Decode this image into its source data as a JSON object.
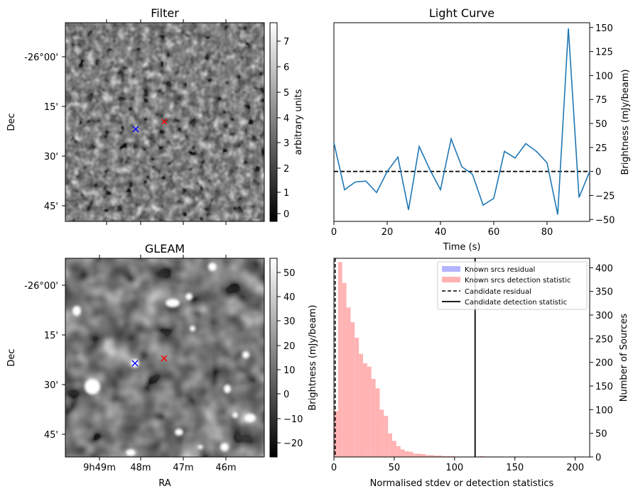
{
  "chart_data": [
    {
      "type": "heatmap",
      "title": "Filter",
      "ylabel": "Dec",
      "yticks": [
        "-26°00'",
        "15'",
        "30'",
        "45'"
      ],
      "colorbar": {
        "label": "arbitrary units",
        "range": [
          -0.3,
          7.6
        ],
        "ticks": [
          "0",
          "1",
          "2",
          "3",
          "4",
          "5",
          "6",
          "7"
        ]
      },
      "colormap": [
        "#000000",
        "#ffffff"
      ],
      "markers": [
        {
          "symbol": "x",
          "color": "#0000ff"
        },
        {
          "symbol": "x",
          "color": "#ff0000"
        }
      ]
    },
    {
      "type": "line",
      "title": "Light Curve",
      "xlabel": "Time (s)",
      "ylabel": "Brightness (mJy/beam)",
      "xlim": [
        0,
        96
      ],
      "ylim": [
        -52,
        155
      ],
      "xticks": [
        "0",
        "20",
        "40",
        "60",
        "80"
      ],
      "yticks": [
        "−50",
        "−25",
        "0",
        "25",
        "50",
        "75",
        "100",
        "125",
        "150"
      ],
      "series": [
        {
          "color": "#1f77b4",
          "x": [
            0,
            4,
            8,
            12,
            16,
            20,
            24,
            28,
            32,
            36,
            40,
            44,
            48,
            52,
            56,
            60,
            64,
            68,
            72,
            76,
            80,
            84,
            88,
            92,
            96
          ],
          "y": [
            30,
            -19,
            -11,
            -10,
            -22,
            0,
            15,
            -40,
            26,
            2,
            -19,
            34,
            5,
            -3,
            -35,
            -28,
            21,
            14,
            29,
            21,
            9,
            -45,
            149,
            -27,
            0
          ]
        }
      ],
      "reference_line": {
        "y": 0,
        "style": "dashed",
        "color": "#000000"
      }
    },
    {
      "type": "heatmap",
      "title": "GLEAM",
      "xlabel": "RA",
      "ylabel": "Dec",
      "xticks": [
        "9h49m",
        "48m",
        "47m",
        "46m"
      ],
      "yticks": [
        "-26°00'",
        "15'",
        "30'",
        "45'"
      ],
      "colorbar": {
        "label": "Brightness (mJy/beam)",
        "range": [
          -26,
          55
        ],
        "ticks": [
          "−20",
          "−10",
          "0",
          "10",
          "20",
          "30",
          "40",
          "50"
        ]
      },
      "colormap": [
        "#000000",
        "#ffffff"
      ],
      "markers": [
        {
          "symbol": "x",
          "color": "#0000ff"
        },
        {
          "symbol": "x",
          "color": "#ff0000"
        }
      ]
    },
    {
      "type": "bar",
      "xlabel": "Normalised stdev or detection statistics",
      "ylabel_left": "Brightness (mJy/beam)",
      "ylabel": "Number of Sources",
      "xlim": [
        0,
        212
      ],
      "ylim": [
        0,
        420
      ],
      "xticks": [
        "0",
        "50",
        "100",
        "150",
        "200"
      ],
      "yticks": [
        "0",
        "50",
        "100",
        "150",
        "200",
        "250",
        "300",
        "350",
        "400"
      ],
      "legend": {
        "placement": "top-right",
        "entries": [
          {
            "label": "Known srcs residual",
            "style": "patch",
            "color": "#b3b3ff"
          },
          {
            "label": "Known srcs detection statistic",
            "style": "patch",
            "color": "#ffb3b3"
          },
          {
            "label": "Candidate residual",
            "style": "dashed-line",
            "color": "#000000"
          },
          {
            "label": "Candidate detection statistic",
            "style": "solid-line",
            "color": "#000000"
          }
        ]
      },
      "bin_width": 3.45,
      "bin_start": 0,
      "counts": [
        97,
        412,
        368,
        316,
        285,
        252,
        218,
        198,
        191,
        165,
        145,
        100,
        87,
        50,
        34,
        23,
        16,
        12,
        11,
        7,
        7,
        6,
        4,
        4,
        3,
        3,
        2,
        2,
        2,
        1,
        1,
        1,
        1,
        1,
        1,
        2,
        1,
        1,
        1,
        1,
        1,
        0,
        1,
        1,
        0,
        0,
        1,
        0,
        0,
        0,
        0,
        0,
        0,
        0,
        0,
        0,
        0,
        0,
        1,
        1
      ],
      "hist_color": "#ffb3b3",
      "candidate_residual": 1,
      "candidate_detection_statistic": 117
    }
  ]
}
